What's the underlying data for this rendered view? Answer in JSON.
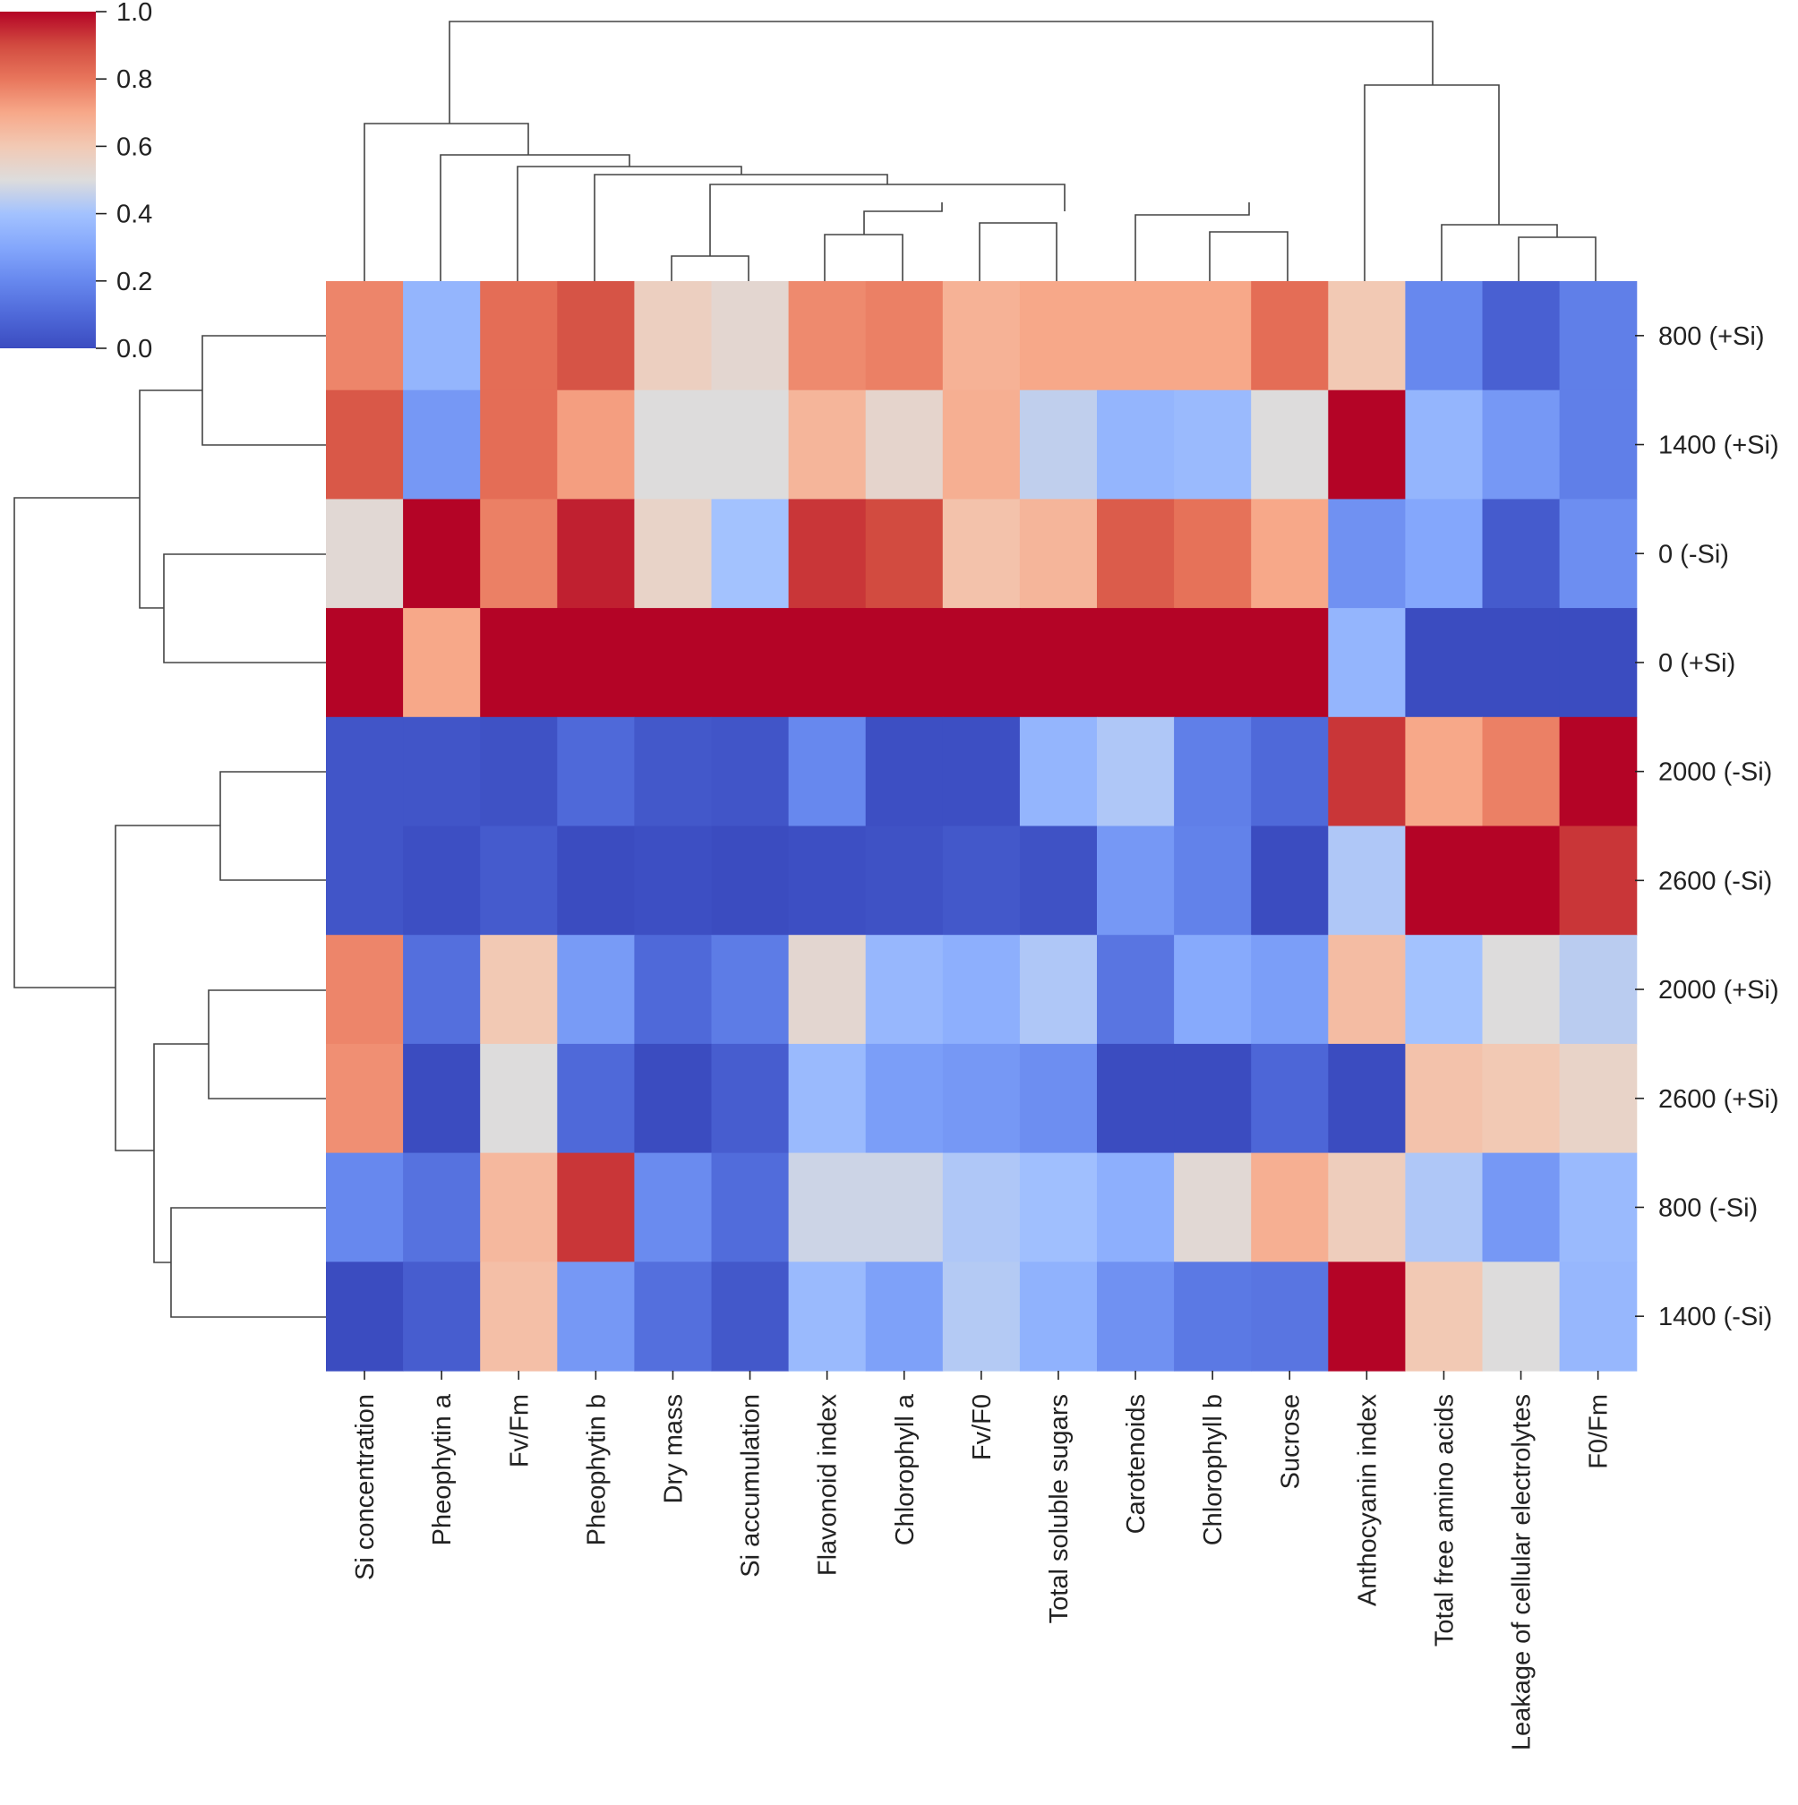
{
  "chart_data": {
    "type": "heatmap",
    "title": "",
    "colormap": "coolwarm",
    "colormap_stops": [
      "#3b4cc0",
      "#dddcdc",
      "#b40426"
    ],
    "vmin": 0.0,
    "vmax": 1.0,
    "colorbar_ticks": [
      "0.0",
      "0.2",
      "0.4",
      "0.6",
      "0.8",
      "1.0"
    ],
    "colorbar_values": [
      0,
      0.2,
      0.4,
      0.6,
      0.8,
      1.0
    ],
    "rows": [
      "800 (+Si)",
      "1400 (+Si)",
      "0 (-Si)",
      "0 (+Si)",
      "2000 (-Si)",
      "2600 (-Si)",
      "2000 (+Si)",
      "2600 (+Si)",
      "800 (-Si)",
      "1400 (-Si)"
    ],
    "columns": [
      "Si concentration",
      "Pheophytin a",
      "Fv/Fm",
      "Pheophytin b",
      "Dry mass",
      "Si accumulation",
      "Flavonoid index",
      "Chlorophyll a",
      "Fv/F0",
      "Total soluble sugars",
      "Carotenoids",
      "Chlorophyll b",
      "Sucrose",
      "Anthocyanin index",
      "Total free amino acids",
      "Leakage of cellular electrolytes",
      "F0/Fm"
    ],
    "values": [
      [
        0.77,
        0.35,
        0.82,
        0.88,
        0.57,
        0.53,
        0.76,
        0.78,
        0.67,
        0.7,
        0.7,
        0.7,
        0.82,
        0.6,
        0.2,
        0.07,
        0.17
      ],
      [
        0.87,
        0.25,
        0.82,
        0.72,
        0.5,
        0.5,
        0.66,
        0.54,
        0.68,
        0.45,
        0.35,
        0.37,
        0.5,
        1.0,
        0.35,
        0.25,
        0.17
      ],
      [
        0.52,
        1.0,
        0.78,
        0.96,
        0.55,
        0.4,
        0.93,
        0.9,
        0.62,
        0.66,
        0.86,
        0.81,
        0.7,
        0.23,
        0.3,
        0.05,
        0.22
      ],
      [
        1.0,
        0.7,
        1.0,
        1.0,
        1.0,
        1.0,
        1.0,
        1.0,
        1.0,
        1.0,
        1.0,
        1.0,
        1.0,
        0.35,
        0.0,
        0.0,
        0.0
      ],
      [
        0.03,
        0.03,
        0.02,
        0.1,
        0.04,
        0.03,
        0.2,
        0.01,
        0.01,
        0.35,
        0.42,
        0.17,
        0.1,
        0.93,
        0.7,
        0.78,
        1.0
      ],
      [
        0.03,
        0.01,
        0.05,
        0.0,
        0.01,
        0.0,
        0.01,
        0.02,
        0.04,
        0.02,
        0.25,
        0.18,
        0.0,
        0.42,
        1.0,
        1.0,
        0.93
      ],
      [
        0.77,
        0.12,
        0.6,
        0.26,
        0.1,
        0.16,
        0.53,
        0.36,
        0.33,
        0.42,
        0.14,
        0.31,
        0.27,
        0.64,
        0.4,
        0.5,
        0.44
      ],
      [
        0.75,
        0.0,
        0.5,
        0.1,
        0.0,
        0.06,
        0.37,
        0.27,
        0.25,
        0.22,
        0.0,
        0.0,
        0.09,
        0.0,
        0.62,
        0.6,
        0.55
      ],
      [
        0.2,
        0.13,
        0.65,
        0.93,
        0.21,
        0.11,
        0.47,
        0.47,
        0.42,
        0.39,
        0.33,
        0.52,
        0.68,
        0.58,
        0.42,
        0.25,
        0.37
      ],
      [
        0.0,
        0.06,
        0.63,
        0.25,
        0.12,
        0.04,
        0.37,
        0.28,
        0.43,
        0.34,
        0.23,
        0.15,
        0.14,
        1.0,
        0.6,
        0.5,
        0.36
      ]
    ]
  }
}
